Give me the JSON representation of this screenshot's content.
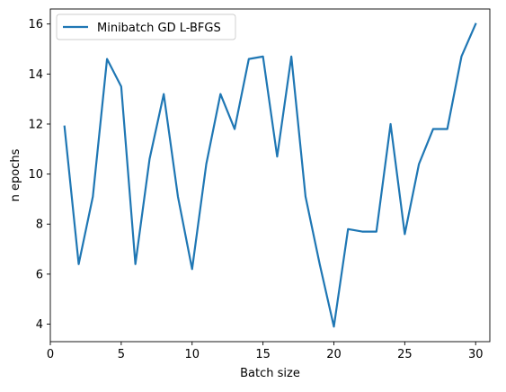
{
  "chart_data": {
    "type": "line",
    "xlabel": "Batch size",
    "ylabel": "n epochs",
    "xlim": [
      0,
      31
    ],
    "ylim": [
      3.3,
      16.6
    ],
    "x_ticks": [
      0,
      5,
      10,
      15,
      20,
      25,
      30
    ],
    "x_tick_labels": [
      "0",
      "5",
      "10",
      "15",
      "20",
      "25",
      "30"
    ],
    "y_ticks": [
      4,
      6,
      8,
      10,
      12,
      14,
      16
    ],
    "y_tick_labels": [
      "4",
      "6",
      "8",
      "10",
      "12",
      "14",
      "16"
    ],
    "grid": false,
    "legend_position": "upper-left",
    "series": [
      {
        "name": "Minibatch GD L-BFGS",
        "color": "#1f77b4",
        "x": [
          1,
          2,
          3,
          4,
          5,
          6,
          7,
          8,
          9,
          10,
          11,
          12,
          13,
          14,
          15,
          16,
          17,
          18,
          19,
          20,
          21,
          22,
          23,
          24,
          25,
          26,
          27,
          28,
          29,
          30
        ],
        "y": [
          11.9,
          6.4,
          9.1,
          14.6,
          13.5,
          6.4,
          10.6,
          13.2,
          9.1,
          6.2,
          10.4,
          13.2,
          11.8,
          14.6,
          14.7,
          10.7,
          14.7,
          9.1,
          6.4,
          3.9,
          7.8,
          7.7,
          7.7,
          12.0,
          7.6,
          10.4,
          11.8,
          11.8,
          14.7,
          16.0
        ]
      }
    ]
  }
}
